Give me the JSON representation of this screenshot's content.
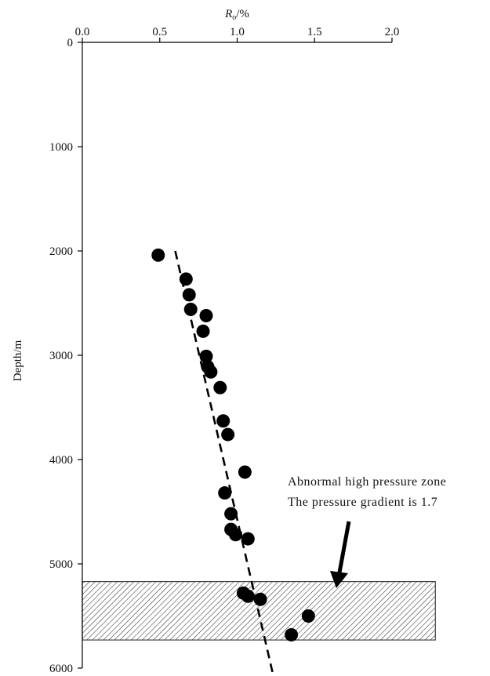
{
  "chart_data": {
    "type": "scatter",
    "title": "",
    "x_axis": {
      "label_main": "R",
      "label_sub": "o",
      "label_unit": "/%",
      "position": "top",
      "range": [
        0.0,
        2.0
      ],
      "ticks": [
        "0.0",
        "0.5",
        "1.0",
        "1.5",
        "2.0"
      ],
      "tick_values": [
        0.0,
        0.5,
        1.0,
        1.5,
        2.0
      ]
    },
    "y_axis": {
      "label": "Depth/m",
      "inverted": true,
      "range": [
        0,
        6000
      ],
      "ticks": [
        "0",
        "1000",
        "2000",
        "3000",
        "4000",
        "5000",
        "6000"
      ],
      "tick_values": [
        0,
        1000,
        2000,
        3000,
        4000,
        5000,
        6000
      ]
    },
    "grid": false,
    "points": [
      {
        "x": 0.49,
        "y": 2040
      },
      {
        "x": 0.67,
        "y": 2270
      },
      {
        "x": 0.69,
        "y": 2420
      },
      {
        "x": 0.7,
        "y": 2560
      },
      {
        "x": 0.8,
        "y": 2620
      },
      {
        "x": 0.78,
        "y": 2770
      },
      {
        "x": 0.8,
        "y": 3010
      },
      {
        "x": 0.81,
        "y": 3110
      },
      {
        "x": 0.83,
        "y": 3160
      },
      {
        "x": 0.89,
        "y": 3310
      },
      {
        "x": 0.91,
        "y": 3630
      },
      {
        "x": 0.94,
        "y": 3760
      },
      {
        "x": 1.05,
        "y": 4120
      },
      {
        "x": 0.92,
        "y": 4320
      },
      {
        "x": 0.96,
        "y": 4520
      },
      {
        "x": 0.96,
        "y": 4670
      },
      {
        "x": 0.99,
        "y": 4720
      },
      {
        "x": 1.07,
        "y": 4760
      },
      {
        "x": 1.04,
        "y": 5280
      },
      {
        "x": 1.07,
        "y": 5310
      },
      {
        "x": 1.15,
        "y": 5340
      },
      {
        "x": 1.46,
        "y": 5500
      },
      {
        "x": 1.35,
        "y": 5680
      }
    ],
    "trend_line": {
      "style": "dashed",
      "start": {
        "x": 0.6,
        "y": 2000
      },
      "end": {
        "x": 1.23,
        "y": 6050
      }
    },
    "zone": {
      "type": "hatched-band",
      "depth_range": [
        5170,
        5730
      ],
      "x_range": [
        0.0,
        2.28
      ],
      "annotation_lines": [
        "Abnormal high pressure zone",
        "The pressure gradient is 1.7"
      ]
    }
  },
  "colors": {
    "marker": "#000000",
    "axis": "#000000",
    "hatch": "#333333"
  }
}
